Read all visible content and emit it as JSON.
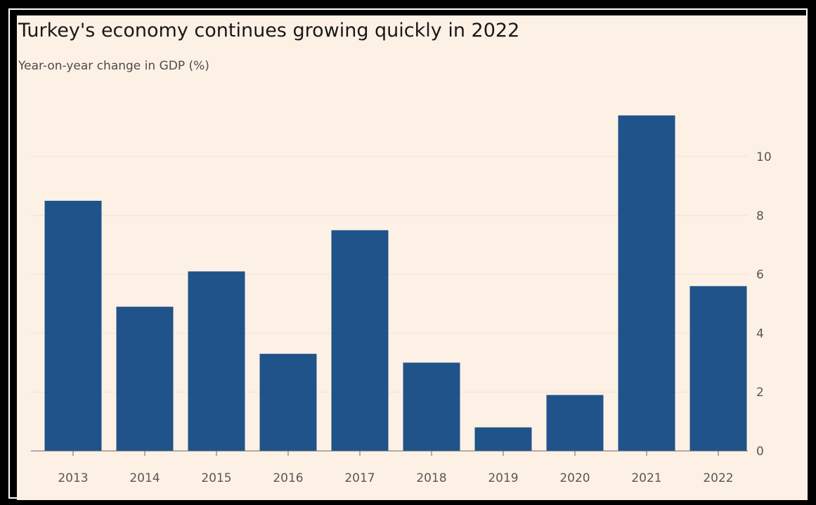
{
  "chart_data": {
    "type": "bar",
    "title": "Turkey's economy continues growing quickly in 2022",
    "subtitle": "Year-on-year change in GDP (%)",
    "categories": [
      "2013",
      "2014",
      "2015",
      "2016",
      "2017",
      "2018",
      "2019",
      "2020",
      "2021",
      "2022"
    ],
    "values": [
      8.5,
      4.9,
      6.1,
      3.3,
      7.5,
      3.0,
      0.8,
      1.9,
      11.4,
      5.6
    ],
    "ylim": [
      0,
      12
    ],
    "y_ticks": [
      0,
      2,
      4,
      6,
      8,
      10
    ],
    "y_tick_labels": [
      "0",
      "2",
      "4",
      "6",
      "8",
      "10"
    ],
    "y_axis_position": "right",
    "grid": true,
    "legend": "none",
    "colors": {
      "bar": "#1f538a",
      "background": "#fdf1e6",
      "grid": "#efe2d6",
      "axis": "#6b6561"
    }
  }
}
